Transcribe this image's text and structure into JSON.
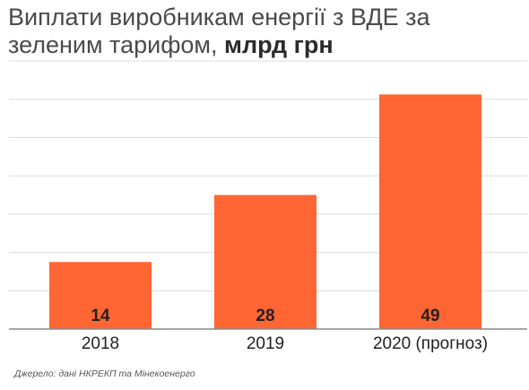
{
  "title": {
    "main": "Виплати виробникам енергії з ВДЕ за зеленим тарифом,",
    "unit": "млрд грн"
  },
  "source": "Джерело: дані НКРЕКП та Мінекоенерго",
  "colors": {
    "bar": "#ff6633",
    "grid": "#dcdcdc",
    "axis": "#8a8a8a",
    "label": "#222222",
    "title": "#4a4a4a"
  },
  "chart_data": {
    "type": "bar",
    "categories": [
      "2018",
      "2019",
      "2020 (прогноз)"
    ],
    "values": [
      14,
      28,
      49
    ],
    "title": "Виплати виробникам енергії з ВДЕ за зеленим тарифом, млрд грн",
    "xlabel": "",
    "ylabel": "",
    "ylim": [
      0,
      56
    ],
    "grid": true,
    "data_labels": [
      "14",
      "28",
      "49"
    ]
  }
}
